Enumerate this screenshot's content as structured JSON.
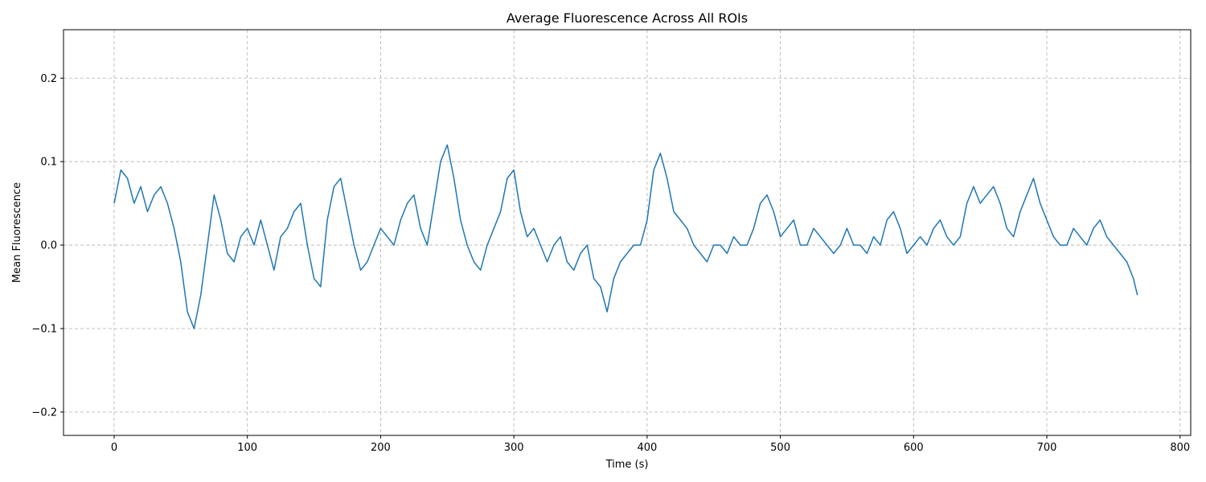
{
  "chart_data": {
    "type": "line",
    "title": "Average Fluorescence Across All ROIs",
    "xlabel": "Time (s)",
    "ylabel": "Mean Fluorescence",
    "xlim": [
      -38,
      808
    ],
    "ylim": [
      -0.228,
      0.258
    ],
    "xticks": [
      0,
      100,
      200,
      300,
      400,
      500,
      600,
      700,
      800
    ],
    "yticks": [
      -0.2,
      -0.1,
      0.0,
      0.1,
      0.2
    ],
    "xtick_labels": [
      "0",
      "100",
      "200",
      "300",
      "400",
      "500",
      "600",
      "700",
      "800"
    ],
    "ytick_labels": [
      "−0.2",
      "−0.1",
      "0.0",
      "0.1",
      "0.2"
    ],
    "grid": true,
    "grid_style": "dashed",
    "series": [
      {
        "color": "#1f77b4",
        "x": [
          0,
          5,
          10,
          15,
          20,
          25,
          30,
          35,
          40,
          45,
          50,
          55,
          60,
          65,
          70,
          75,
          80,
          85,
          90,
          95,
          100,
          105,
          110,
          115,
          120,
          125,
          130,
          135,
          140,
          145,
          150,
          155,
          160,
          165,
          170,
          175,
          180,
          185,
          190,
          195,
          200,
          205,
          210,
          215,
          220,
          225,
          230,
          235,
          240,
          245,
          250,
          255,
          260,
          265,
          270,
          275,
          280,
          285,
          290,
          295,
          300,
          305,
          310,
          315,
          320,
          325,
          330,
          335,
          340,
          345,
          350,
          355,
          360,
          365,
          370,
          375,
          380,
          385,
          390,
          395,
          400,
          405,
          410,
          415,
          420,
          425,
          430,
          435,
          440,
          445,
          450,
          455,
          460,
          465,
          470,
          475,
          480,
          485,
          490,
          495,
          500,
          505,
          510,
          515,
          520,
          525,
          530,
          535,
          540,
          545,
          550,
          555,
          560,
          565,
          570,
          575,
          580,
          585,
          590,
          595,
          600,
          605,
          610,
          615,
          620,
          625,
          630,
          635,
          640,
          645,
          650,
          655,
          660,
          665,
          670,
          675,
          680,
          685,
          690,
          695,
          700,
          705,
          710,
          715,
          720,
          725,
          730,
          735,
          740,
          745,
          750,
          755,
          760,
          765,
          768
        ],
        "y": [
          0.05,
          0.09,
          0.08,
          0.05,
          0.07,
          0.04,
          0.06,
          0.07,
          0.05,
          0.02,
          -0.02,
          -0.08,
          -0.1,
          -0.06,
          0.0,
          0.06,
          0.03,
          -0.01,
          -0.02,
          0.01,
          0.02,
          0.0,
          0.03,
          0.0,
          -0.03,
          0.01,
          0.02,
          0.04,
          0.05,
          0.0,
          -0.04,
          -0.05,
          0.03,
          0.07,
          0.08,
          0.04,
          0.0,
          -0.03,
          -0.02,
          0.0,
          0.02,
          0.01,
          0.0,
          0.03,
          0.05,
          0.06,
          0.02,
          0.0,
          0.05,
          0.1,
          0.12,
          0.08,
          0.03,
          0.0,
          -0.02,
          -0.03,
          0.0,
          0.02,
          0.04,
          0.08,
          0.09,
          0.04,
          0.01,
          0.02,
          0.0,
          -0.02,
          0.0,
          0.01,
          -0.02,
          -0.03,
          -0.01,
          0.0,
          -0.04,
          -0.05,
          -0.08,
          -0.04,
          -0.02,
          -0.01,
          0.0,
          0.0,
          0.03,
          0.09,
          0.11,
          0.08,
          0.04,
          0.03,
          0.02,
          0.0,
          -0.01,
          -0.02,
          0.0,
          0.0,
          -0.01,
          0.01,
          0.0,
          0.0,
          0.02,
          0.05,
          0.06,
          0.04,
          0.01,
          0.02,
          0.03,
          0.0,
          0.0,
          0.02,
          0.01,
          0.0,
          -0.01,
          0.0,
          0.02,
          0.0,
          0.0,
          -0.01,
          0.01,
          0.0,
          0.03,
          0.04,
          0.02,
          -0.01,
          0.0,
          0.01,
          0.0,
          0.02,
          0.03,
          0.01,
          0.0,
          0.01,
          0.05,
          0.07,
          0.05,
          0.06,
          0.07,
          0.05,
          0.02,
          0.01,
          0.04,
          0.06,
          0.08,
          0.05,
          0.03,
          0.01,
          0.0,
          0.0,
          0.02,
          0.01,
          0.0,
          0.02,
          0.03,
          0.01,
          0.0,
          -0.01,
          -0.02,
          -0.04,
          -0.06
        ]
      }
    ]
  }
}
